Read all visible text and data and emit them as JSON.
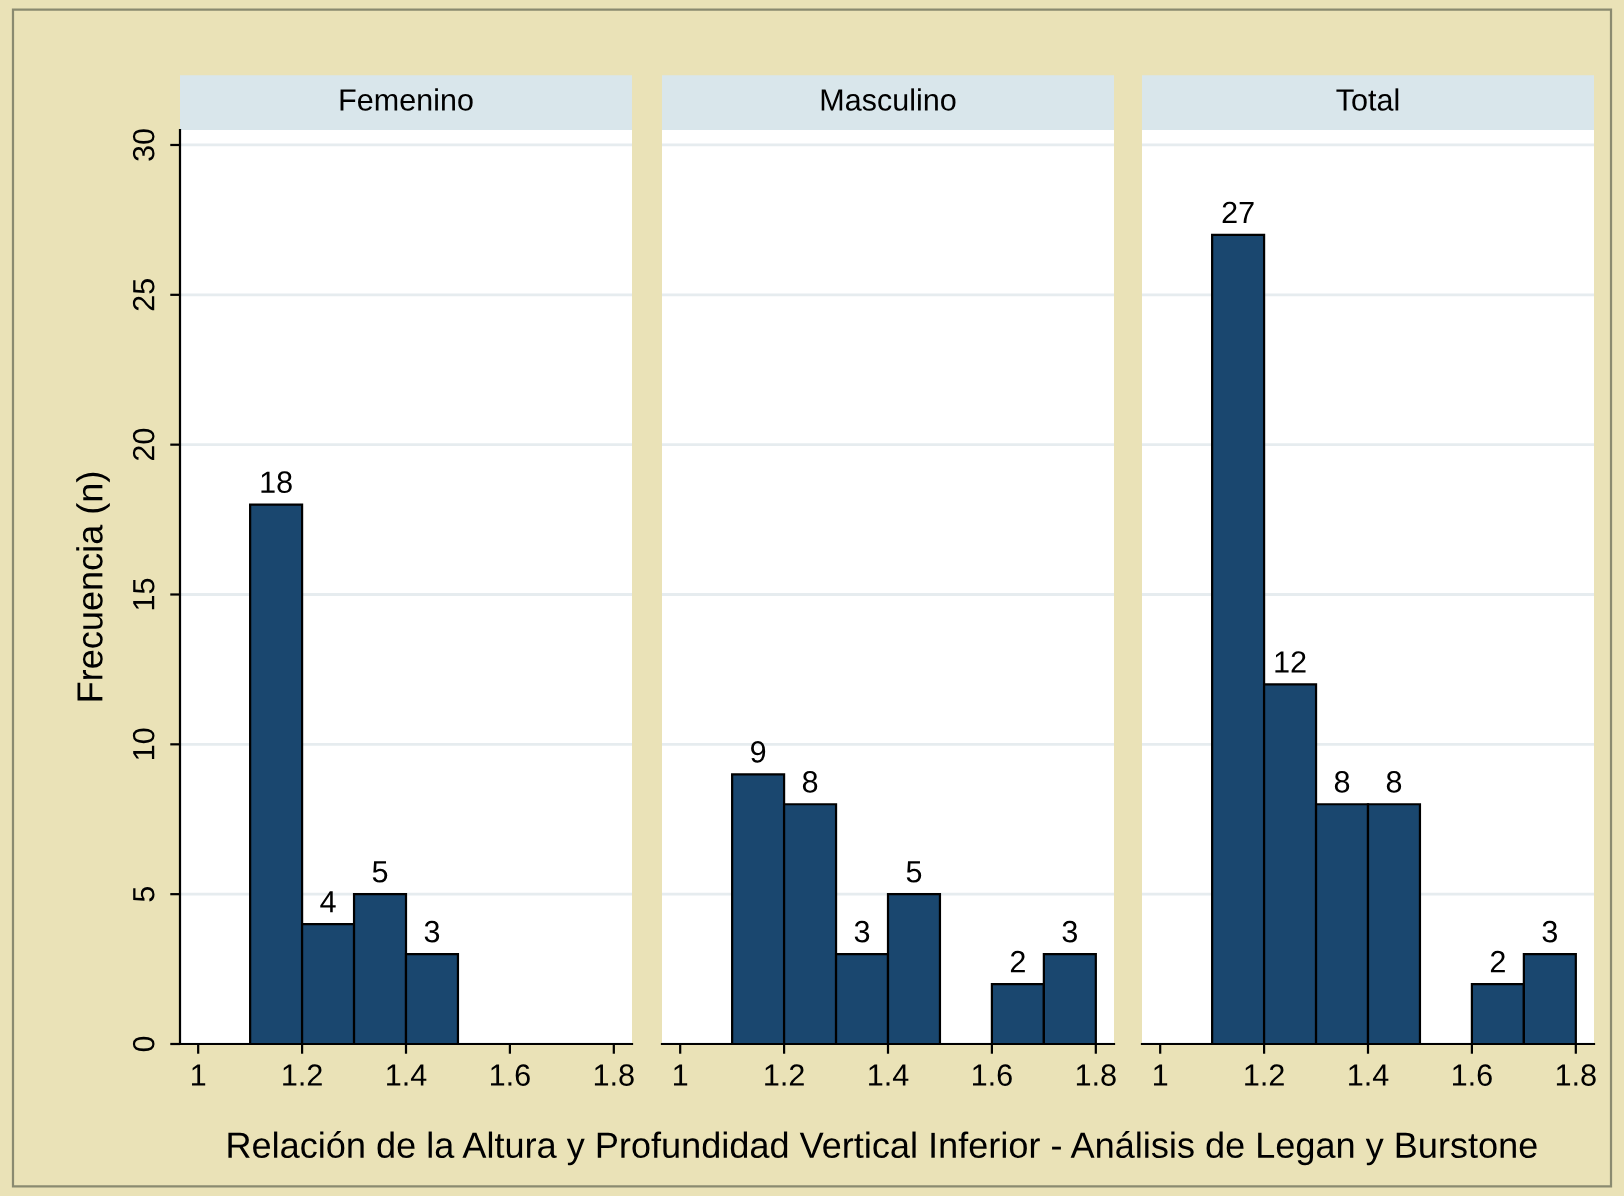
{
  "chart_data": [
    {
      "type": "histogram",
      "title": "Femenino",
      "ylabel": "Frecuencia (n)",
      "xlabel": "Relación de la Altura y Profundidad Vertical Inferior - Análisis de Legan y Burstone",
      "bins": [
        1.1,
        1.2,
        1.3,
        1.4,
        1.5,
        1.6,
        1.7,
        1.8
      ],
      "values": [
        18,
        4,
        5,
        3,
        0,
        0,
        0
      ],
      "value_labels": [
        "18",
        "4",
        "5",
        "3",
        null,
        null,
        null
      ],
      "color": "#1a476f",
      "xlim": [
        0.965,
        1.835
      ],
      "ylim": [
        0,
        30.5
      ],
      "xticks": [
        1,
        1.2,
        1.4,
        1.6,
        1.8
      ],
      "yticks": [
        0,
        5,
        10,
        15,
        20,
        25,
        30
      ],
      "grid": "y"
    },
    {
      "type": "histogram",
      "title": "Masculino",
      "bins": [
        1.1,
        1.2,
        1.3,
        1.4,
        1.5,
        1.6,
        1.7,
        1.8
      ],
      "values": [
        9,
        8,
        3,
        5,
        0,
        2,
        3
      ],
      "value_labels": [
        "9",
        "8",
        "3",
        "5",
        null,
        "2",
        "3"
      ],
      "color": "#1a476f",
      "xlim": [
        0.965,
        1.835
      ],
      "ylim": [
        0,
        30.5
      ],
      "xticks": [
        1,
        1.2,
        1.4,
        1.6,
        1.8
      ],
      "tick_labels": "x",
      "grid": "y"
    },
    {
      "type": "histogram",
      "title": "Total",
      "bins": [
        1.1,
        1.2,
        1.3,
        1.4,
        1.5,
        1.6,
        1.7,
        1.8
      ],
      "values": [
        27,
        12,
        8,
        8,
        0,
        2,
        3
      ],
      "value_labels": [
        "27",
        "12",
        "8",
        "8",
        null,
        "2",
        "3"
      ],
      "color": "#1a476f",
      "xlim": [
        0.965,
        1.835
      ],
      "ylim": [
        0,
        30.5
      ],
      "xticks": [
        1,
        1.2,
        1.4,
        1.6,
        1.8
      ],
      "tick_labels": "x",
      "grid": "y"
    }
  ]
}
